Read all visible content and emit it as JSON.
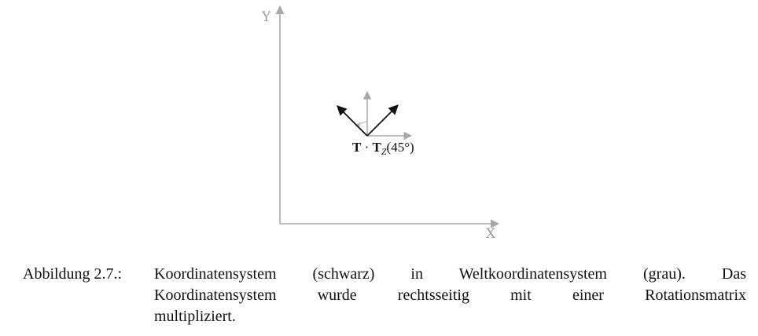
{
  "diagram": {
    "axis_x_label": "X",
    "axis_y_label": "Y",
    "transform_label": {
      "main": "T",
      "dot": " · ",
      "rot": "T",
      "subscript": "Z",
      "angle": "(45°)"
    },
    "colors": {
      "world_axes": "#a8a8a8",
      "local_axes": "#111111"
    },
    "rotation_deg": 45
  },
  "caption": {
    "prefix": "Abbildung 2.7.:",
    "lines": [
      "Koordinatensystem (schwarz) in Weltkoordinatensystem (grau). Das",
      "Koordinatensystem wurde rechtsseitig mit einer Rotationsmatrix",
      "multipliziert."
    ]
  }
}
